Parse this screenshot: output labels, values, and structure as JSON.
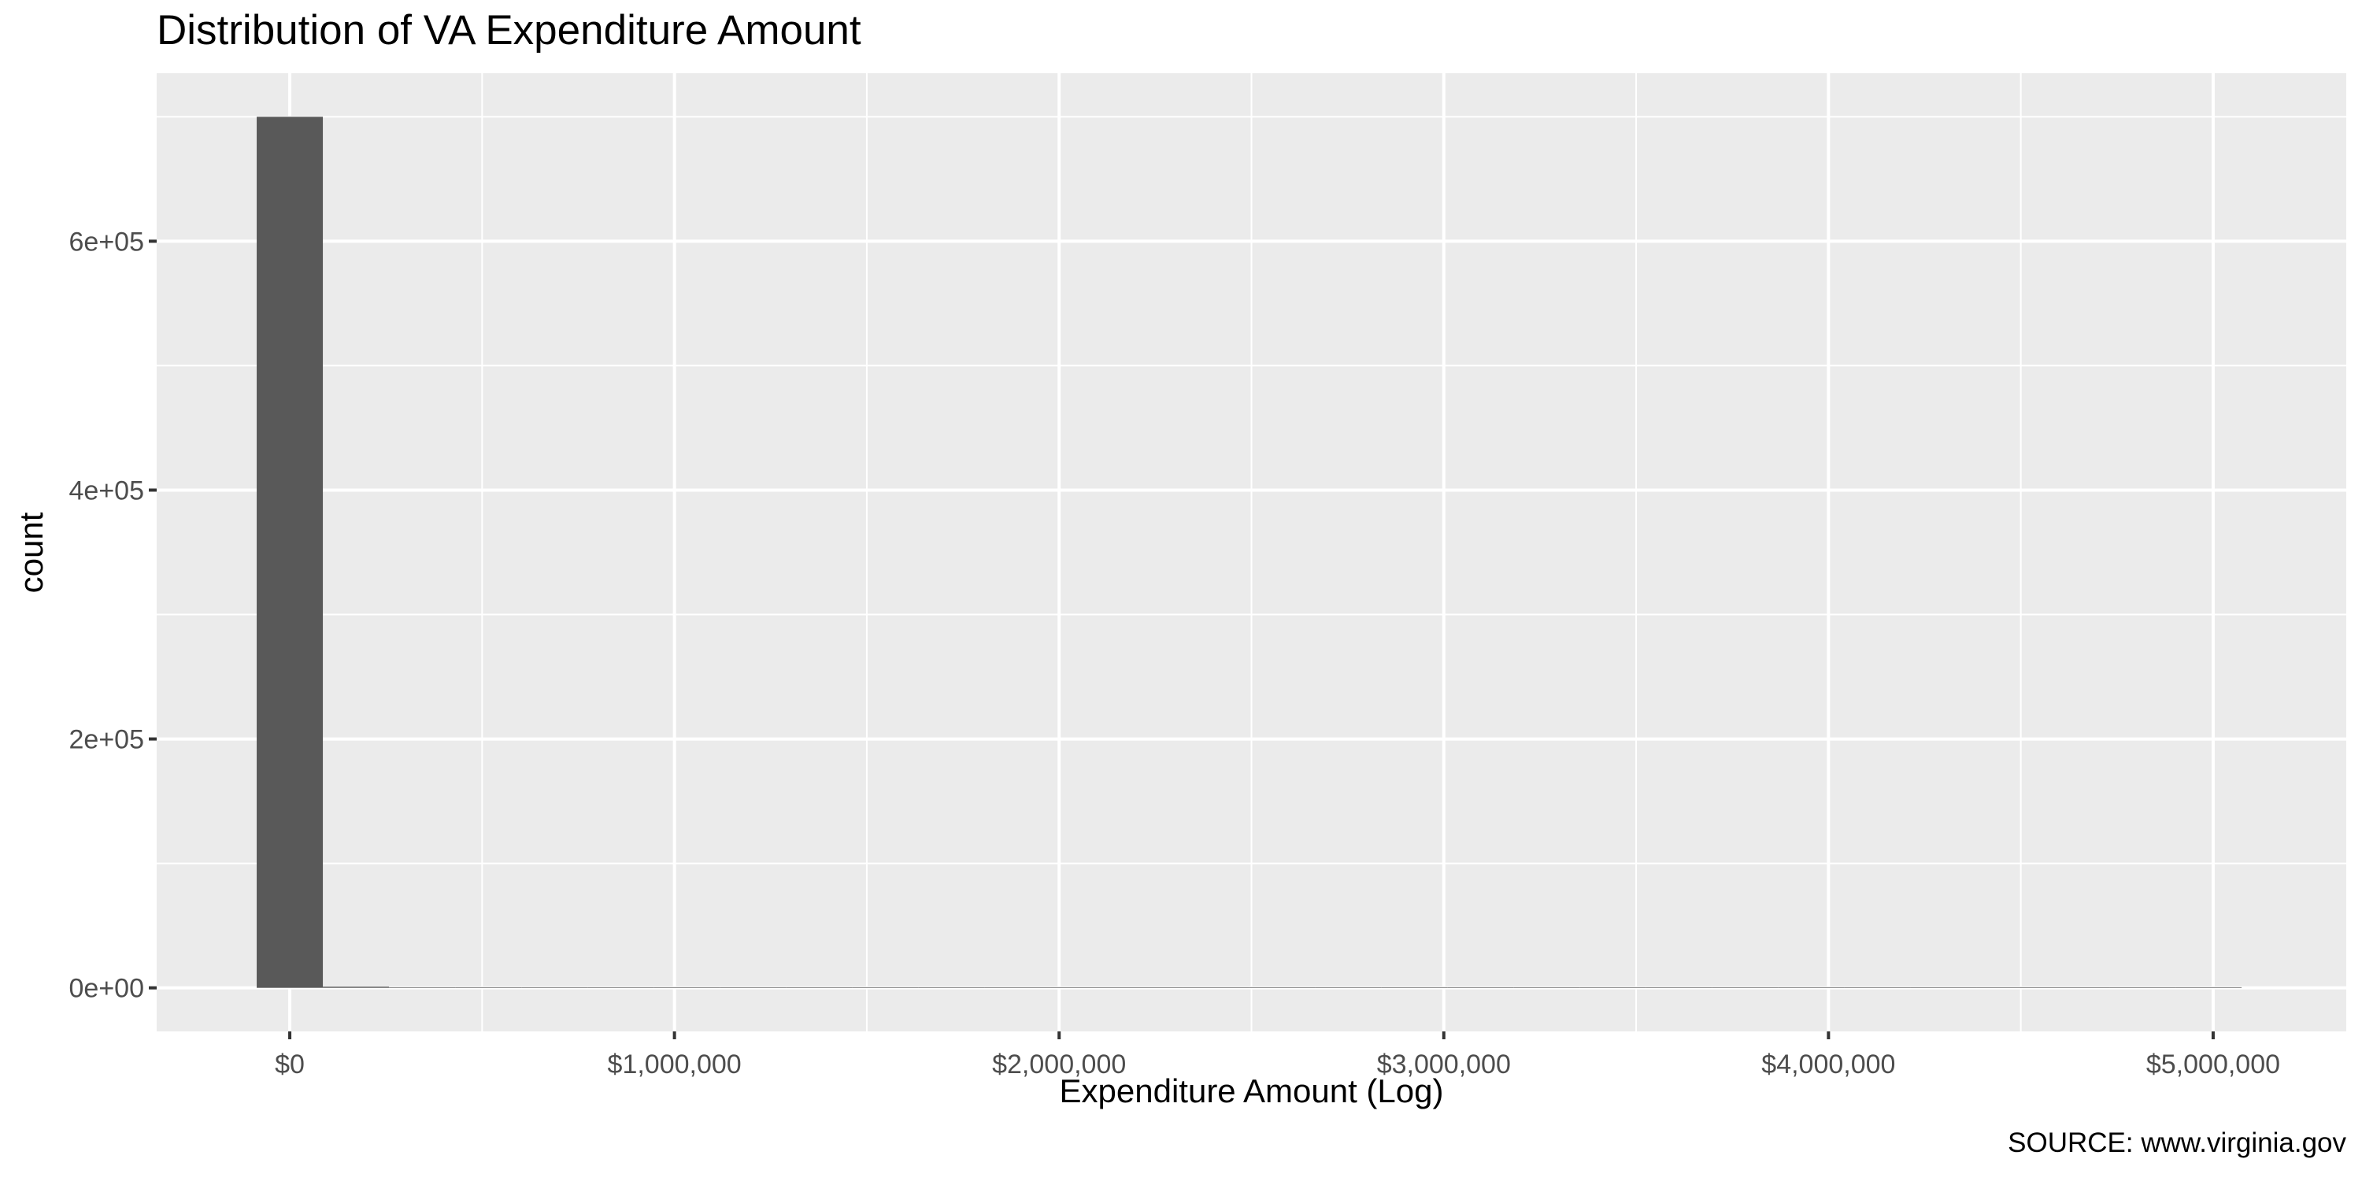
{
  "chart_data": {
    "type": "bar",
    "title": "Distribution of VA Expenditure Amount",
    "xlabel": "Expenditure Amount (Log)",
    "ylabel": "count",
    "caption": "SOURCE: www.virginia.gov",
    "x_ticks": [
      {
        "value": 0,
        "label": "$0"
      },
      {
        "value": 1000000,
        "label": "$1,000,000"
      },
      {
        "value": 2000000,
        "label": "$2,000,000"
      },
      {
        "value": 3000000,
        "label": "$3,000,000"
      },
      {
        "value": 4000000,
        "label": "$4,000,000"
      },
      {
        "value": 5000000,
        "label": "$5,000,000"
      }
    ],
    "y_ticks": [
      {
        "value": 0,
        "label": "0e+00"
      },
      {
        "value": 200000,
        "label": "2e+05"
      },
      {
        "value": 400000,
        "label": "4e+05"
      },
      {
        "value": 600000,
        "label": "6e+05"
      }
    ],
    "xlim": [
      -346000,
      5346000
    ],
    "ylim": [
      -35000,
      735000
    ],
    "bin_width": 172000,
    "bins": [
      {
        "center": 0,
        "count": 700000
      },
      {
        "center": 172000,
        "count": 500
      },
      {
        "center": 344000,
        "count": 0
      },
      {
        "center": 516000,
        "count": 0
      },
      {
        "center": 688000,
        "count": 0
      },
      {
        "center": 860000,
        "count": 0
      },
      {
        "center": 1032000,
        "count": 0
      },
      {
        "center": 1204000,
        "count": 0
      },
      {
        "center": 1376000,
        "count": 0
      },
      {
        "center": 1548000,
        "count": 0
      },
      {
        "center": 1720000,
        "count": 0
      },
      {
        "center": 1892000,
        "count": 0
      },
      {
        "center": 2064000,
        "count": 0
      },
      {
        "center": 2236000,
        "count": 0
      },
      {
        "center": 2408000,
        "count": 0
      },
      {
        "center": 2580000,
        "count": 0
      },
      {
        "center": 2752000,
        "count": 0
      },
      {
        "center": 2924000,
        "count": 0
      },
      {
        "center": 3096000,
        "count": 0
      },
      {
        "center": 3268000,
        "count": 0
      },
      {
        "center": 3440000,
        "count": 0
      },
      {
        "center": 3612000,
        "count": 0
      },
      {
        "center": 3784000,
        "count": 0
      },
      {
        "center": 3956000,
        "count": 0
      },
      {
        "center": 4128000,
        "count": 0
      },
      {
        "center": 4300000,
        "count": 0
      },
      {
        "center": 4472000,
        "count": 0
      },
      {
        "center": 4644000,
        "count": 0
      },
      {
        "center": 4816000,
        "count": 0
      },
      {
        "center": 4988000,
        "count": 0
      }
    ],
    "grid": true,
    "legend": "none",
    "colors": {
      "panel_background": "#EBEBEB",
      "grid_major": "#FFFFFF",
      "bar_fill": "#595959",
      "tick_text": "#4D4D4D",
      "tick_mark": "#333333"
    }
  }
}
